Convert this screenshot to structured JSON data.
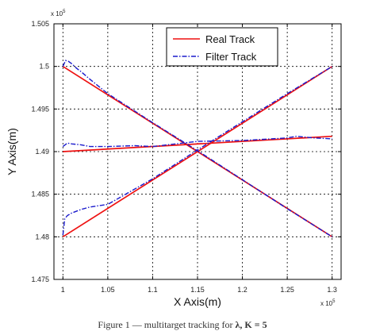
{
  "chart_data": {
    "type": "line",
    "xlabel": "X Axis(m)",
    "ylabel": "Y Axis(m)",
    "x_exponent_label": "x 10",
    "x_exponent_power": "5",
    "y_exponent_label": "x 10",
    "y_exponent_power": "5",
    "xlim": [
      0.99,
      1.31
    ],
    "ylim": [
      1.475,
      1.505
    ],
    "xticks": [
      1,
      1.05,
      1.1,
      1.15,
      1.2,
      1.25,
      1.3
    ],
    "xtick_labels": [
      "1",
      "1.05",
      "1.1",
      "1.15",
      "1.2",
      "1.25",
      "1.3"
    ],
    "yticks": [
      1.475,
      1.48,
      1.485,
      1.49,
      1.495,
      1.5,
      1.505
    ],
    "ytick_labels": [
      "1.475",
      "1.48",
      "1.485",
      "1.49",
      "1.495",
      "1.5",
      "1.505"
    ],
    "grid": true,
    "legend_position": "top-right",
    "series": [
      {
        "name": "Real Track",
        "color": "#ee1111",
        "style": "solid",
        "tracks": [
          {
            "x": [
              1.0,
              1.3
            ],
            "y": [
              1.5,
              1.48
            ]
          },
          {
            "x": [
              1.0,
              1.3
            ],
            "y": [
              1.48,
              1.5
            ]
          },
          {
            "x": [
              1.0,
              1.3
            ],
            "y": [
              1.49,
              1.4918
            ]
          }
        ]
      },
      {
        "name": "Filter Track",
        "color": "#1a1acc",
        "style": "dashdot",
        "tracks": [
          {
            "x": [
              1.0,
              1.003,
              1.006,
              1.01,
              1.015,
              1.02,
              1.03,
              1.05,
              1.1,
              1.15,
              1.2,
              1.25,
              1.3
            ],
            "y": [
              1.5,
              1.5007,
              1.5006,
              1.5003,
              1.4998,
              1.4994,
              1.4985,
              1.4968,
              1.4934,
              1.4901,
              1.4867,
              1.4833,
              1.48
            ]
          },
          {
            "x": [
              1.0,
              1.002,
              1.005,
              1.01,
              1.02,
              1.03,
              1.05,
              1.1,
              1.15,
              1.2,
              1.25,
              1.3
            ],
            "y": [
              1.4802,
              1.4821,
              1.4825,
              1.4828,
              1.4832,
              1.4835,
              1.4838,
              1.4868,
              1.4902,
              1.4935,
              1.4968,
              1.5
            ]
          },
          {
            "x": [
              1.0,
              1.005,
              1.01,
              1.02,
              1.03,
              1.05,
              1.08,
              1.1,
              1.15,
              1.2,
              1.25,
              1.26,
              1.28,
              1.3
            ],
            "y": [
              1.4906,
              1.491,
              1.4909,
              1.4908,
              1.4906,
              1.4906,
              1.4907,
              1.4906,
              1.4912,
              1.4913,
              1.4916,
              1.4918,
              1.4916,
              1.4915
            ]
          }
        ]
      }
    ]
  },
  "caption": "Figure 1 — multitarget tracking for",
  "caption_math": "λ, K = 5"
}
